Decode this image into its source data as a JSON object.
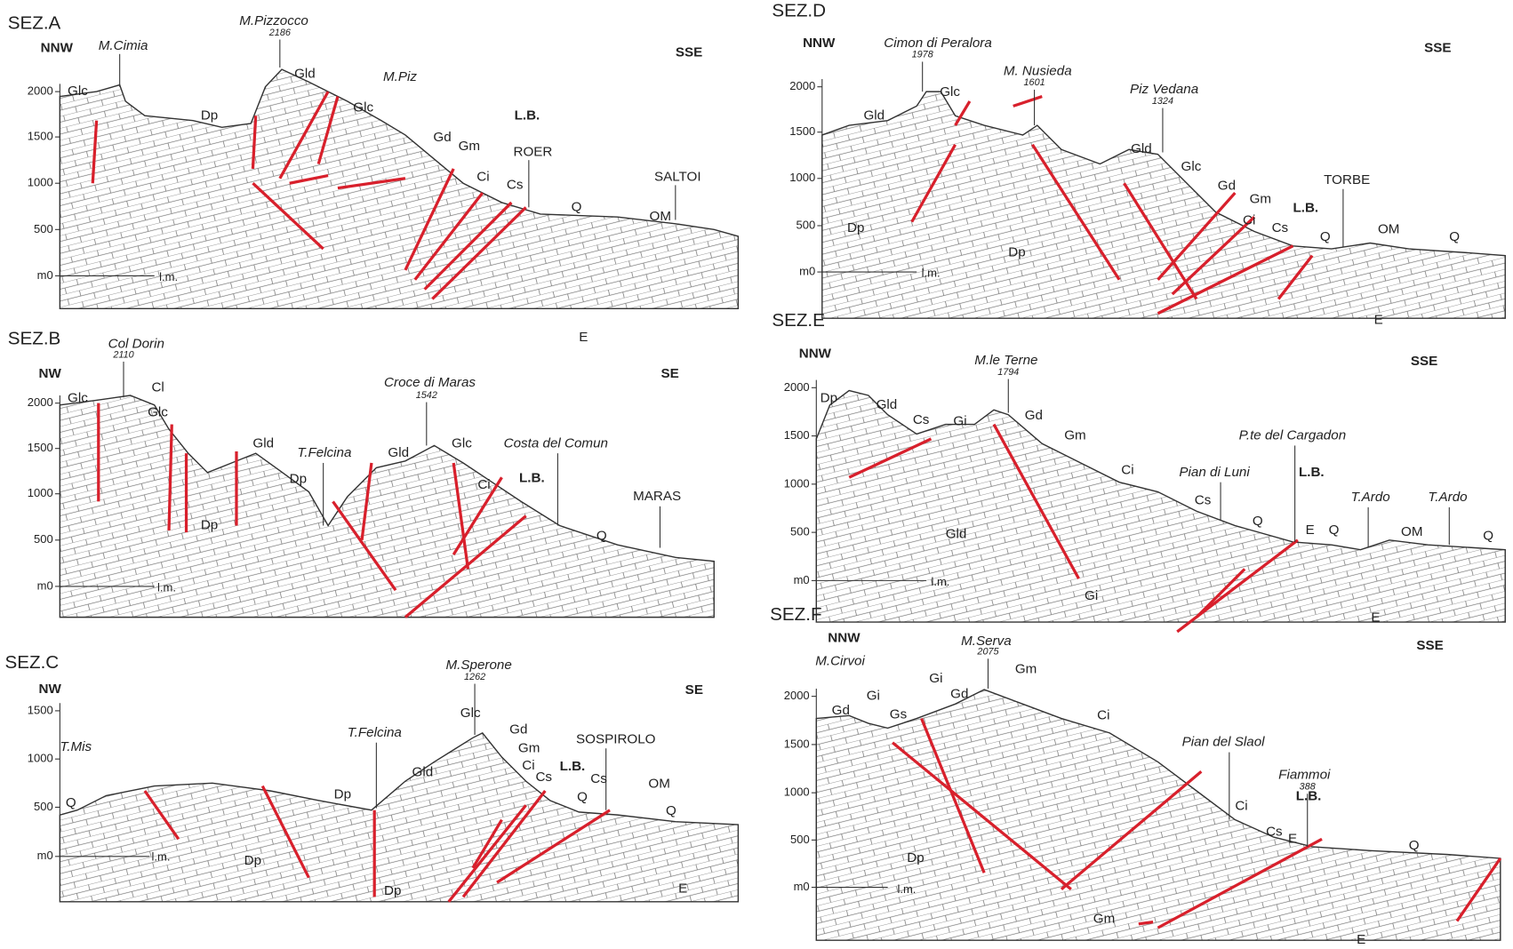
{
  "sections": [
    {
      "title": "SEZ.A",
      "left": "NNW",
      "right": "SSE",
      "ticks": [
        "2000",
        "1500",
        "1000",
        "500",
        "m0"
      ],
      "datum": "l.m.",
      "places": [
        {
          "name": "M.Cimia"
        },
        {
          "name": "M.Pizzocco",
          "elevation": "2186"
        },
        {
          "name": "M.Piz"
        },
        {
          "name": "L.B."
        },
        {
          "name": "ROER"
        },
        {
          "name": "SALTOI"
        }
      ],
      "units": [
        "Glc",
        "Dp",
        "Gld",
        "Glc",
        "Gd",
        "Gm",
        "Ci",
        "Cs",
        "Q",
        "OM",
        "E"
      ]
    },
    {
      "title": "SEZ.B",
      "left": "NW",
      "right": "SE",
      "ticks": [
        "2000",
        "1500",
        "1000",
        "500",
        "m0"
      ],
      "datum": "l.m.",
      "places": [
        {
          "name": "Col Dorin",
          "elevation": "2110"
        },
        {
          "name": "Croce di Maras",
          "elevation": "1542"
        },
        {
          "name": "T.Felcina"
        },
        {
          "name": "Costa del Comun"
        },
        {
          "name": "MARAS"
        },
        {
          "name": "L.B."
        }
      ],
      "units": [
        "Glc",
        "Cl",
        "Glc",
        "Gld",
        "Dp",
        "Dp",
        "Gld",
        "Glc",
        "Ci",
        "Q"
      ]
    },
    {
      "title": "SEZ.C",
      "left": "NW",
      "right": "SE",
      "ticks": [
        "1500",
        "1000",
        "500",
        "m0"
      ],
      "datum": "l.m.",
      "places": [
        {
          "name": "T.Mis"
        },
        {
          "name": "T.Felcina"
        },
        {
          "name": "M.Sperone",
          "elevation": "1262"
        },
        {
          "name": "SOSPIROLO"
        },
        {
          "name": "L.B."
        }
      ],
      "units": [
        "Q",
        "Dp",
        "Dp",
        "Dp",
        "Gld",
        "Glc",
        "Gd",
        "Gm",
        "Ci",
        "Cs",
        "Cs",
        "OM",
        "Q",
        "Q",
        "E"
      ]
    },
    {
      "title": "SEZ.D",
      "left": "NNW",
      "right": "SSE",
      "ticks": [
        "2000",
        "1500",
        "1000",
        "500",
        "m0"
      ],
      "datum": "l.m.",
      "places": [
        {
          "name": "Cimon di Peralora",
          "elevation": "1978"
        },
        {
          "name": "M. Nusieda",
          "elevation": "1601"
        },
        {
          "name": "Piz Vedana",
          "elevation": "1324"
        },
        {
          "name": "TORBE"
        },
        {
          "name": "L.B."
        }
      ],
      "units": [
        "Gld",
        "Glc",
        "Gld",
        "Glc",
        "Gd",
        "Gm",
        "Ci",
        "Cs",
        "Q",
        "OM",
        "Q",
        "Dp",
        "Dp",
        "E"
      ]
    },
    {
      "title": "SEZ.E",
      "left": "NNW",
      "right": "SSE",
      "ticks": [
        "2000",
        "1500",
        "1000",
        "500",
        "m0"
      ],
      "datum": "l.m.",
      "places": [
        {
          "name": "M.le Terne",
          "elevation": "1794"
        },
        {
          "name": "P.te del Cargadon"
        },
        {
          "name": "Pian di Luni"
        },
        {
          "name": "T.Ardo"
        },
        {
          "name": "T.Ardo"
        },
        {
          "name": "L.B."
        }
      ],
      "units": [
        "Dp",
        "Gld",
        "Cs",
        "Gi",
        "Gd",
        "Gm",
        "Ci",
        "Cs",
        "Q",
        "E",
        "Q",
        "OM",
        "Q",
        "Gld",
        "Gi",
        "E"
      ]
    },
    {
      "title": "SEZ.F",
      "left": "NNW",
      "right": "SSE",
      "ticks": [
        "2000",
        "1500",
        "1000",
        "500",
        "m0"
      ],
      "datum": "l.m.",
      "places": [
        {
          "name": "M.Cirvoi"
        },
        {
          "name": "M.Serva",
          "elevation": "2075"
        },
        {
          "name": "Pian del Slaol"
        },
        {
          "name": "Fiammoi",
          "elevation": "388"
        },
        {
          "name": "L.B."
        }
      ],
      "units": [
        "Gd",
        "Gi",
        "Gs",
        "Gi",
        "Gd",
        "Gm",
        "Ci",
        "Ci",
        "Cs",
        "E",
        "Q",
        "Dp",
        "Gm",
        "E"
      ]
    }
  ]
}
